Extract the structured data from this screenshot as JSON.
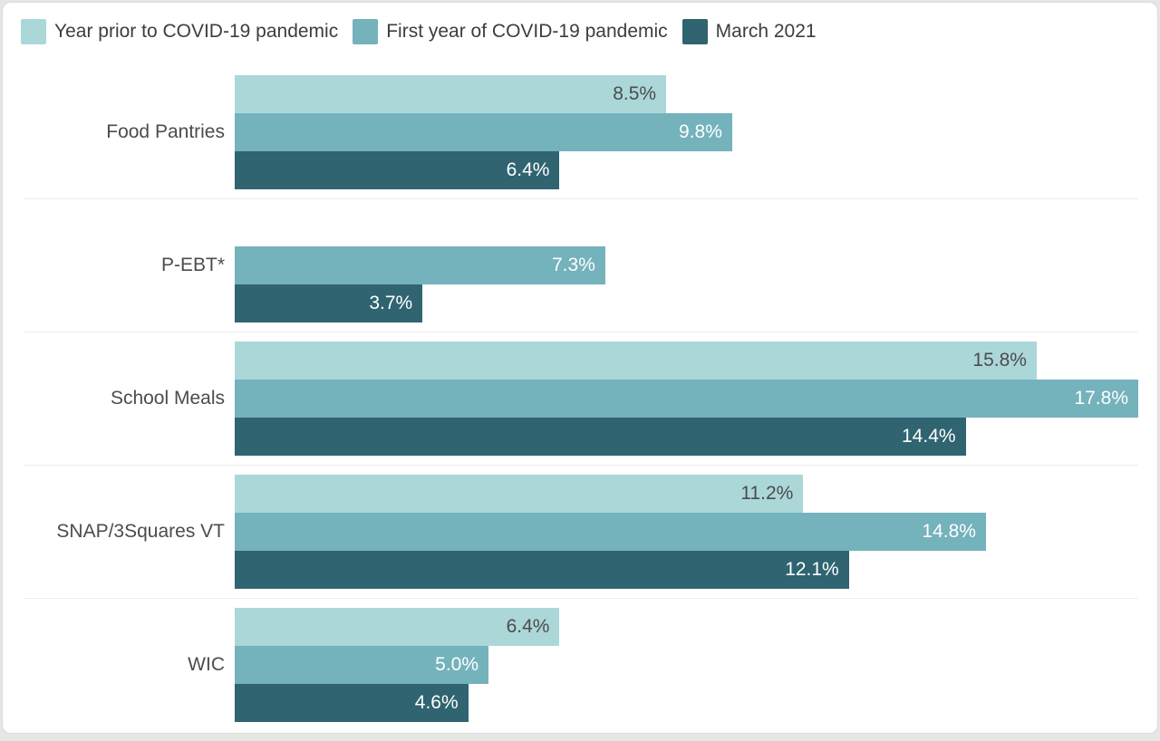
{
  "page": {
    "background_color": "#e5e6e6",
    "card_background": "#ffffff",
    "card_border_color": "#dcdcdc",
    "divider_color": "#ededed"
  },
  "legend": {
    "items": [
      {
        "label": "Year prior to COVID-19 pandemic",
        "color": "#abd7d9"
      },
      {
        "label": "First year of COVID-19 pandemic",
        "color": "#74b2bc"
      },
      {
        "label": "March 2021",
        "color": "#2f6470"
      }
    ]
  },
  "chart_data": {
    "type": "bar",
    "orientation": "horizontal",
    "title": "",
    "xlabel": "",
    "ylabel": "",
    "xlim": [
      0,
      17.8
    ],
    "grid": false,
    "legend_position": "top-left",
    "value_format": "percent",
    "categories": [
      "Food Pantries",
      "P-EBT*",
      "School Meals",
      "SNAP/3Squares VT",
      "WIC"
    ],
    "series": [
      {
        "name": "Year prior to COVID-19 pandemic",
        "color": "#abd7d9",
        "label_color": "#4c4c4c",
        "values": [
          8.5,
          null,
          15.8,
          11.2,
          6.4
        ],
        "display_values": [
          "8.5%",
          null,
          "15.8%",
          "11.2%",
          "6.4%"
        ]
      },
      {
        "name": "First year of COVID-19 pandemic",
        "color": "#74b2bc",
        "label_color": "#ffffff",
        "values": [
          9.8,
          7.3,
          17.8,
          14.8,
          5.0
        ],
        "display_values": [
          "9.8%",
          "7.3%",
          "17.8%",
          "14.8%",
          "5.0%"
        ]
      },
      {
        "name": "March 2021",
        "color": "#2f6470",
        "label_color": "#ffffff",
        "values": [
          6.4,
          3.7,
          14.4,
          12.1,
          4.6
        ],
        "display_values": [
          "6.4%",
          "3.7%",
          "14.4%",
          "12.1%",
          "4.6%"
        ]
      }
    ]
  }
}
